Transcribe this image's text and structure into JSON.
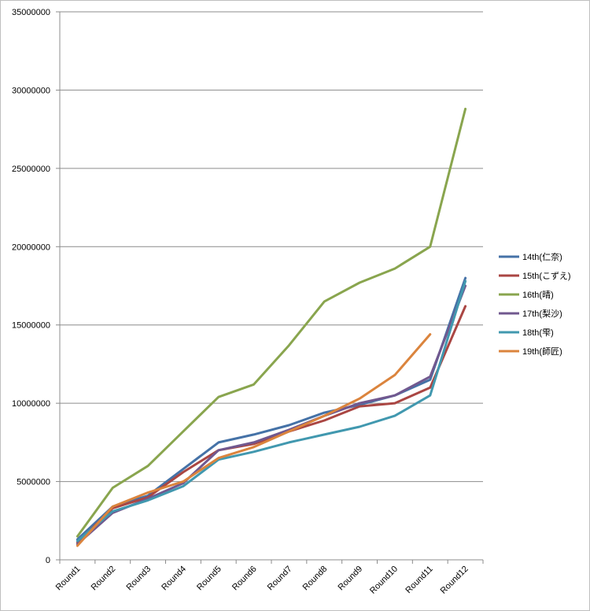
{
  "chart_data": {
    "type": "line",
    "categories": [
      "Round1",
      "Round2",
      "Round3",
      "Round4",
      "Round5",
      "Round6",
      "Round7",
      "Round8",
      "Round9",
      "Round10",
      "Round11",
      "Round12"
    ],
    "ylim": [
      0,
      35000000
    ],
    "yticks": [
      "0",
      "5000000",
      "10000000",
      "15000000",
      "20000000",
      "25000000",
      "30000000",
      "35000000"
    ],
    "ytick_values": [
      0,
      5000000,
      10000000,
      15000000,
      20000000,
      25000000,
      30000000,
      35000000
    ],
    "grid": true,
    "legend_position": "right",
    "series": [
      {
        "name": "14th(仁奈)",
        "color": "#4572A7",
        "values": [
          1300000,
          3400000,
          4100000,
          5800000,
          7500000,
          8000000,
          8600000,
          9400000,
          9900000,
          10500000,
          11500000,
          18000000
        ]
      },
      {
        "name": "15th(こずえ)",
        "color": "#AA4643",
        "values": [
          1100000,
          3300000,
          4000000,
          5600000,
          7000000,
          7400000,
          8200000,
          8900000,
          9800000,
          10000000,
          11000000,
          16200000
        ]
      },
      {
        "name": "16th(晴)",
        "color": "#89A54E",
        "values": [
          1500000,
          4600000,
          6000000,
          8200000,
          10400000,
          11200000,
          13700000,
          16500000,
          17700000,
          18600000,
          20000000,
          28800000
        ]
      },
      {
        "name": "17th(梨沙)",
        "color": "#71588F",
        "values": [
          1000000,
          3000000,
          3900000,
          4900000,
          7000000,
          7500000,
          8300000,
          9200000,
          10000000,
          10500000,
          11700000,
          17500000
        ]
      },
      {
        "name": "18th(雫)",
        "color": "#4198AF",
        "values": [
          1200000,
          3100000,
          3800000,
          4700000,
          6400000,
          6900000,
          7500000,
          8000000,
          8500000,
          9200000,
          10500000,
          17800000
        ]
      },
      {
        "name": "19th(師匠)",
        "color": "#DB843D",
        "values": [
          900000,
          3400000,
          4300000,
          5000000,
          6500000,
          7200000,
          8200000,
          9200000,
          10300000,
          11800000,
          14400000,
          null
        ]
      }
    ]
  }
}
